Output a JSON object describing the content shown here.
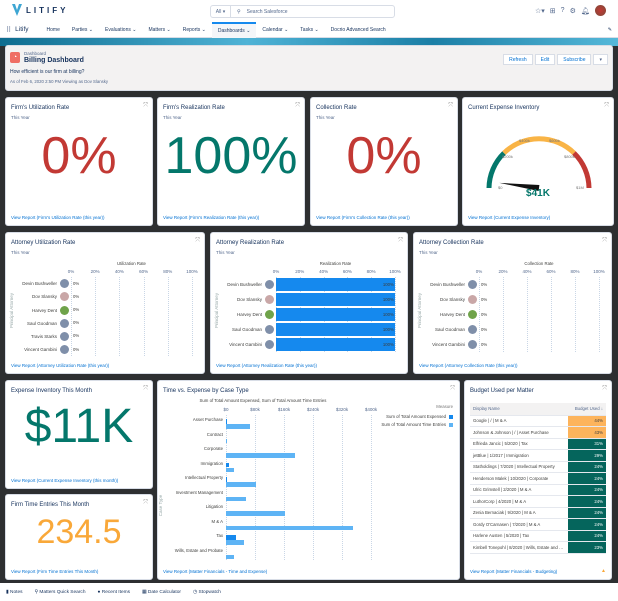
{
  "header": {
    "logo": "LITIFY",
    "search_scope": "All",
    "search_placeholder": "Search Salesforce"
  },
  "nav": {
    "app": "Litify",
    "items": [
      "Home",
      "Parties",
      "Evaluations",
      "Matters",
      "Reports",
      "Dashboards",
      "Calendar",
      "Tasks",
      "Docrio Advanced Search"
    ],
    "active": "Dashboards"
  },
  "dashboard": {
    "type_label": "Dashboard",
    "title": "Billing Dashboard",
    "subtitle": "How efficient is our firm at billing?",
    "as_of": "As of Feb 6, 2020 2:50 PM Viewing as Dov Slansky",
    "buttons": {
      "refresh": "Refresh",
      "edit": "Edit",
      "subscribe": "Subscribe"
    }
  },
  "colors": {
    "red": "#c23934",
    "teal": "#04776b",
    "orange": "#f9a839",
    "bar_blue": "#1589ee",
    "light_blue": "#5eb4f5"
  },
  "cards": {
    "firm_util": {
      "title": "Firm's Utilization Rate",
      "sub": "This Year",
      "value": "0%",
      "link": "View Report (Firm's Utilization Rate (this year))"
    },
    "firm_real": {
      "title": "Firm's Realization Rate",
      "sub": "This Year",
      "value": "100%",
      "link": "View Report (Firm's Realization Rate (this year))"
    },
    "collection": {
      "title": "Collection Rate",
      "sub": "This Year",
      "value": "0%",
      "link": "View Report (Firm's Collection Rate (this year))"
    },
    "expense_inv": {
      "title": "Current Expense Inventory",
      "value": "$41K",
      "gauge_labels": [
        "$0",
        "$200k",
        "$400k",
        "$600k",
        "$800k",
        "$1M"
      ],
      "gauge_value_k": 41,
      "gauge_max_k": 1000,
      "link": "View Report (Current Expense Inventory)"
    },
    "expense_month": {
      "title": "Expense Inventory This Month",
      "value": "$11K",
      "link": "View Report (Current Expense Inventory (this month))"
    },
    "time_entries": {
      "title": "Firm Time Entries This Month",
      "value": "234.5",
      "link": "View Report (Firm Time Entries This Month)"
    }
  },
  "attorney_charts": [
    {
      "title": "Attorney Utilization Rate",
      "sub": "This Year",
      "axis_title": "Utilization Rate",
      "y_title": "Principal Attorney",
      "ticks": [
        "0%",
        "20%",
        "40%",
        "60%",
        "80%",
        "100%"
      ],
      "names": [
        "Devin Bushweller",
        "Dov Slansky",
        "Harvey Dent",
        "Saul Goodman",
        "Travis Starks",
        "Vincent Gambini"
      ],
      "values": [
        0,
        0,
        0,
        0,
        0,
        0
      ],
      "labels": [
        "0%",
        "0%",
        "0%",
        "0%",
        "0%",
        "0%"
      ],
      "link": "View Report (Attorney Utilization Rate (this year))"
    },
    {
      "title": "Attorney Realization Rate",
      "sub": "This Year",
      "axis_title": "Realization Rate",
      "y_title": "Principal Attorney",
      "ticks": [
        "0%",
        "20%",
        "40%",
        "60%",
        "80%",
        "100%"
      ],
      "names": [
        "Devin Bushweller",
        "Dov Slansky",
        "Harvey Dent",
        "Saul Goodman",
        "Vincent Gambini"
      ],
      "values": [
        100,
        100,
        100,
        100,
        100
      ],
      "labels": [
        "100%",
        "100%",
        "100%",
        "100%",
        "100%"
      ],
      "link": "View Report (Attorney Realization Rate (this year))"
    },
    {
      "title": "Attorney Collection Rate",
      "sub": "This Year",
      "axis_title": "Collection Rate",
      "y_title": "Principal Attorney",
      "ticks": [
        "0%",
        "20%",
        "40%",
        "60%",
        "80%",
        "100%"
      ],
      "names": [
        "Devin Bushweller",
        "Dov Slansky",
        "Harvey Dent",
        "Saul Goodman",
        "Vincent Gambini"
      ],
      "values": [
        0,
        0,
        0,
        0,
        0
      ],
      "labels": [
        "0%",
        "0%",
        "0%",
        "0%",
        "0%"
      ],
      "link": "View Report (Attorney Collection Rate (this year))"
    }
  ],
  "chart_data": {
    "type": "bar",
    "title": "Time vs. Expense by Case Type",
    "xlabel": "Sum of Total Amount Expensed, Sum of Total Amount Time Entries",
    "ylabel": "Case Type",
    "xlim": [
      0,
      400
    ],
    "ticks": [
      "$0",
      "$80k",
      "$160k",
      "$240k",
      "$320k",
      "$400k"
    ],
    "legend_title": "Measure",
    "legend_position": "top-right",
    "categories": [
      "Asset Purchase",
      "Contract",
      "Corporate",
      "Immigration",
      "Intellectual Property",
      "Investment Management",
      "Litigation",
      "M & A",
      "Tax",
      "Wills, Estate and Probate"
    ],
    "series": [
      {
        "name": "Sum of Total Amount Expensed",
        "color": "#1589ee",
        "values": [
          2,
          0,
          0,
          8,
          3,
          0,
          0,
          0,
          28,
          0
        ]
      },
      {
        "name": "Sum of Total Amount Time Entries",
        "color": "#5eb4f5",
        "values": [
          67,
          2,
          189,
          23,
          82,
          55,
          162,
          350,
          51,
          22
        ]
      }
    ],
    "link": "View Report (Matter Financials - Time and Expense)"
  },
  "budget": {
    "title": "Budget Used per Matter",
    "columns": [
      "Display Name",
      "Budget Used ↓"
    ],
    "rows": [
      {
        "name": "Google | / | M & A",
        "value": "44%",
        "status": "high"
      },
      {
        "name": "Johnson & Johnson | / | Asset Purchase",
        "value": "43%",
        "status": "high"
      },
      {
        "name": "Elfrieda Jancic | 5/2020 | Tax",
        "value": "31%",
        "status": "ok"
      },
      {
        "name": "jetBlue | 1/2017 | Immigration",
        "value": "29%",
        "status": "ok"
      },
      {
        "name": "Statholdings | 7/2020 | Intellectual Property",
        "value": "24%",
        "status": "ok"
      },
      {
        "name": "Henderson Malek | 10/2020 | Corporate",
        "value": "24%",
        "status": "ok"
      },
      {
        "name": "Ulric Grimstell | 2/2020 | M & A",
        "value": "24%",
        "status": "ok"
      },
      {
        "name": "LuthorCorp | 4/2020 | M & A",
        "value": "24%",
        "status": "ok"
      },
      {
        "name": "Zenia Bernaciak | 9/2020 | M & A",
        "value": "24%",
        "status": "ok"
      },
      {
        "name": "Gordy O'Carnasen | 7/2020 | M & A",
        "value": "24%",
        "status": "ok"
      },
      {
        "name": "Harlene Austen | 5/2020 | Tax",
        "value": "24%",
        "status": "ok"
      },
      {
        "name": "Kimbell Tonepohl | 8/2020 | Wills, Estate and Pro...",
        "value": "23%",
        "status": "ok"
      }
    ],
    "link": "View Report (Matter Financials - Budgeting)"
  },
  "footer": {
    "items": [
      "Notes",
      "Matters Quick Search",
      "Recent Items",
      "Date Calculator",
      "Stopwatch"
    ]
  }
}
